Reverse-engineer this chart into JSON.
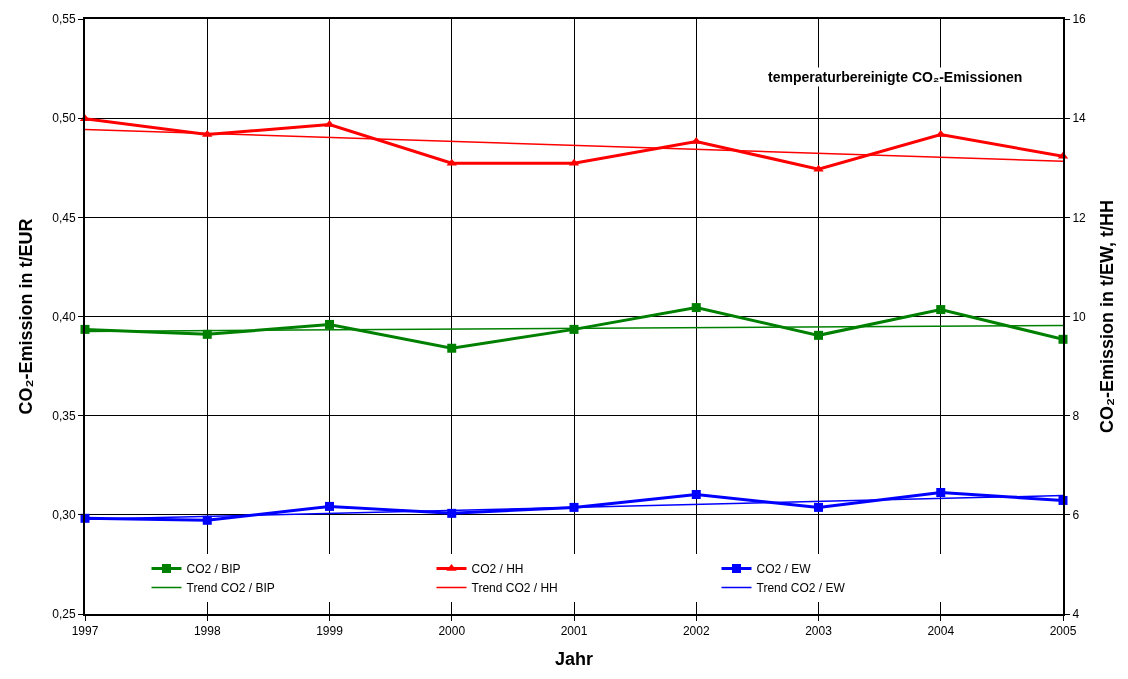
{
  "chart_data": {
    "type": "line",
    "xlabel": "Jahr",
    "ylabel": "CO₂-Emission in t/EUR",
    "y2label": "CO₂-Emission in t/EW, t/HH",
    "annotations": [
      "temperaturbereinigte CO₂-Emissionen"
    ],
    "x": [
      1997,
      1998,
      1999,
      2000,
      2001,
      2002,
      2003,
      2004,
      2005
    ],
    "series": [
      {
        "name": "CO2 / BIP",
        "color": "#008000",
        "marker": "square",
        "values": [
          0.3935,
          0.391,
          0.396,
          0.384,
          0.3935,
          0.4045,
          0.3905,
          0.4035,
          0.3885
        ]
      },
      {
        "name": "CO2 / HH",
        "color": "#ff0000",
        "marker": "triangle",
        "axis": "y2",
        "values": [
          13.99,
          13.67,
          13.87,
          13.09,
          13.09,
          13.53,
          12.97,
          13.67,
          13.23
        ]
      },
      {
        "name": "CO2 / EW",
        "color": "#0000ff",
        "marker": "square",
        "axis": "y2",
        "values": [
          5.93,
          5.89,
          6.17,
          6.03,
          6.15,
          6.41,
          6.15,
          6.45,
          6.29
        ]
      },
      {
        "name": "Trend CO2 / BIP",
        "color": "#008000",
        "marker": "none",
        "values": [
          0.3925,
          null,
          null,
          null,
          null,
          null,
          null,
          null,
          0.3955
        ]
      },
      {
        "name": "Trend CO2 / HH",
        "color": "#ff0000",
        "marker": "none",
        "axis": "y2",
        "values": [
          13.77,
          null,
          null,
          null,
          null,
          null,
          null,
          null,
          13.13
        ]
      },
      {
        "name": "Trend CO2 / EW",
        "color": "#0000ff",
        "marker": "none",
        "axis": "y2",
        "values": [
          5.91,
          null,
          null,
          null,
          null,
          null,
          null,
          null,
          6.39
        ]
      }
    ],
    "xlim": [
      1997,
      2005
    ],
    "xticks": [
      1997,
      1998,
      1999,
      2000,
      2001,
      2002,
      2003,
      2004,
      2005
    ],
    "ylim": [
      0.25,
      0.55
    ],
    "yticks": [
      {
        "value": 0.25,
        "label": "0,25"
      },
      {
        "value": 0.3,
        "label": "0,30"
      },
      {
        "value": 0.35,
        "label": "0,35"
      },
      {
        "value": 0.4,
        "label": "0,40"
      },
      {
        "value": 0.45,
        "label": "0,45"
      },
      {
        "value": 0.5,
        "label": "0,50"
      },
      {
        "value": 0.55,
        "label": "0,55"
      }
    ],
    "y2lim": [
      4,
      16
    ],
    "y2ticks": [
      4,
      6,
      8,
      10,
      12,
      14,
      16
    ],
    "grid": true,
    "legend": "bottom",
    "line_style": "solid"
  }
}
